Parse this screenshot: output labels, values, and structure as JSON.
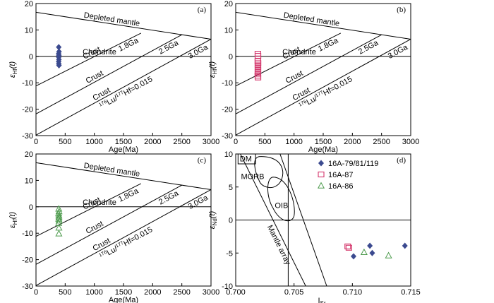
{
  "chart_data": [
    {
      "panel": "(a)",
      "type": "scatter",
      "xlabel": "Age(Ma)",
      "ylabel_main": "ε",
      "ylabel_sub": "Hf",
      "ylabel_tail": "(t)",
      "xlim": [
        0,
        3000
      ],
      "ylim": [
        -30,
        20
      ],
      "xticks": [
        "0",
        "500",
        "1000",
        "1500",
        "2000",
        "2500",
        "3000"
      ],
      "yticks": [
        "20",
        "10",
        "0",
        "-10",
        "-20",
        "-30"
      ],
      "lines": {
        "depleted_mantle": [
          [
            0,
            16.7
          ],
          [
            3000,
            6.5
          ]
        ],
        "chondrite": [
          [
            0,
            0
          ],
          [
            3000,
            0
          ]
        ],
        "crust_1_8ga": [
          [
            0,
            -11.2
          ],
          [
            1800,
            8.8
          ]
        ],
        "crust_2_5ga": [
          [
            0,
            -21.8
          ],
          [
            2500,
            8.2
          ]
        ],
        "crust_3_0ga": [
          [
            0,
            -29.8
          ],
          [
            3000,
            6.5
          ]
        ]
      },
      "annotations": {
        "depleted_mantle": "Depleted mantle",
        "crust": "Crust",
        "chondrite": "Chondrite",
        "ga_1_8": "1.8Ga",
        "ga_2_5": "2.5Ga",
        "ga_3_0": "3.0Ga",
        "lu_pre": "176",
        "lu_mid": "Lu/",
        "lu_sup2": "177",
        "lu_post": "Hf=0.015"
      },
      "series": [
        {
          "label": "16A-79/81/119",
          "marker": "diamond",
          "color": "#3b4a8f",
          "x": [
            390,
            395,
            388,
            392,
            390,
            393,
            389,
            391,
            394
          ],
          "y": [
            3.5,
            1.8,
            1.0,
            0.4,
            -0.3,
            -1.2,
            -2.0,
            -2.8,
            -3.4
          ]
        }
      ]
    },
    {
      "panel": "(b)",
      "type": "scatter",
      "xlabel": "Age(Ma)",
      "ylabel_main": "ε",
      "ylabel_sub": "Hf",
      "ylabel_tail": "(t)",
      "xlim": [
        0,
        3000
      ],
      "ylim": [
        -30,
        20
      ],
      "xticks": [
        "0",
        "500",
        "1000",
        "1500",
        "2000",
        "2500",
        "3000"
      ],
      "yticks": [
        "20",
        "10",
        "0",
        "-10",
        "-20",
        "-30"
      ],
      "series": [
        {
          "label": "16A-87",
          "marker": "square",
          "color": "#d4376c",
          "x": [
            380,
            382,
            381,
            379,
            383,
            380,
            381,
            382,
            380,
            381,
            379,
            382
          ],
          "y": [
            1.0,
            0.2,
            -0.8,
            -1.8,
            -2.6,
            -3.4,
            -4.2,
            -5.0,
            -5.8,
            -6.6,
            -7.3,
            -8.0
          ]
        }
      ]
    },
    {
      "panel": "(c)",
      "type": "scatter",
      "xlabel": "Age(Ma)",
      "ylabel_main": "ε",
      "ylabel_sub": "Hf",
      "ylabel_tail": "(t)",
      "xlim": [
        0,
        3000
      ],
      "ylim": [
        -30,
        20
      ],
      "xticks": [
        "0",
        "500",
        "1000",
        "1500",
        "2000",
        "2500",
        "3000"
      ],
      "yticks": [
        "20",
        "10",
        "0",
        "-10",
        "-20",
        "-30"
      ],
      "series": [
        {
          "label": "16A-86",
          "marker": "triangle",
          "color": "#4c9a4c",
          "x": [
            390,
            395,
            388,
            392,
            394,
            390,
            396,
            389,
            393,
            392
          ],
          "y": [
            -0.8,
            -1.8,
            -2.6,
            -3.4,
            -4.0,
            -4.6,
            -5.3,
            -6.2,
            -8.0,
            -10.2
          ]
        }
      ]
    },
    {
      "panel": "(d)",
      "type": "scatter",
      "xlabel_main": "I",
      "xlabel_sub": "Sr",
      "ylabel_main": "ε",
      "ylabel_sub": "Nd",
      "ylabel_tail": "(t)",
      "xlim": [
        0.7,
        0.715
      ],
      "ylim": [
        -10,
        10
      ],
      "xticks": [
        "0.700",
        "0.705",
        "0.710",
        "0.715"
      ],
      "yticks": [
        "10",
        "5",
        "0",
        "-5",
        "-10"
      ],
      "annotations": {
        "dm": "DM",
        "morb": "MORB",
        "oib": "OIB",
        "mantle_array": "Mantle array"
      },
      "series": [
        {
          "name": "16A-79/81/119",
          "marker": "diamond",
          "color": "#3b4a8f",
          "x": [
            0.7101,
            0.7115,
            0.7117,
            0.7145
          ],
          "y": [
            -5.5,
            -3.9,
            -5.0,
            -3.9
          ]
        },
        {
          "name": "16A-87",
          "marker": "square",
          "color": "#d4376c",
          "x": [
            0.7096,
            0.7097
          ],
          "y": [
            -4.0,
            -4.2
          ]
        },
        {
          "name": "16A-86",
          "marker": "triangle",
          "color": "#4c9a4c",
          "x": [
            0.711,
            0.7131
          ],
          "y": [
            -4.9,
            -5.4
          ]
        }
      ]
    }
  ]
}
